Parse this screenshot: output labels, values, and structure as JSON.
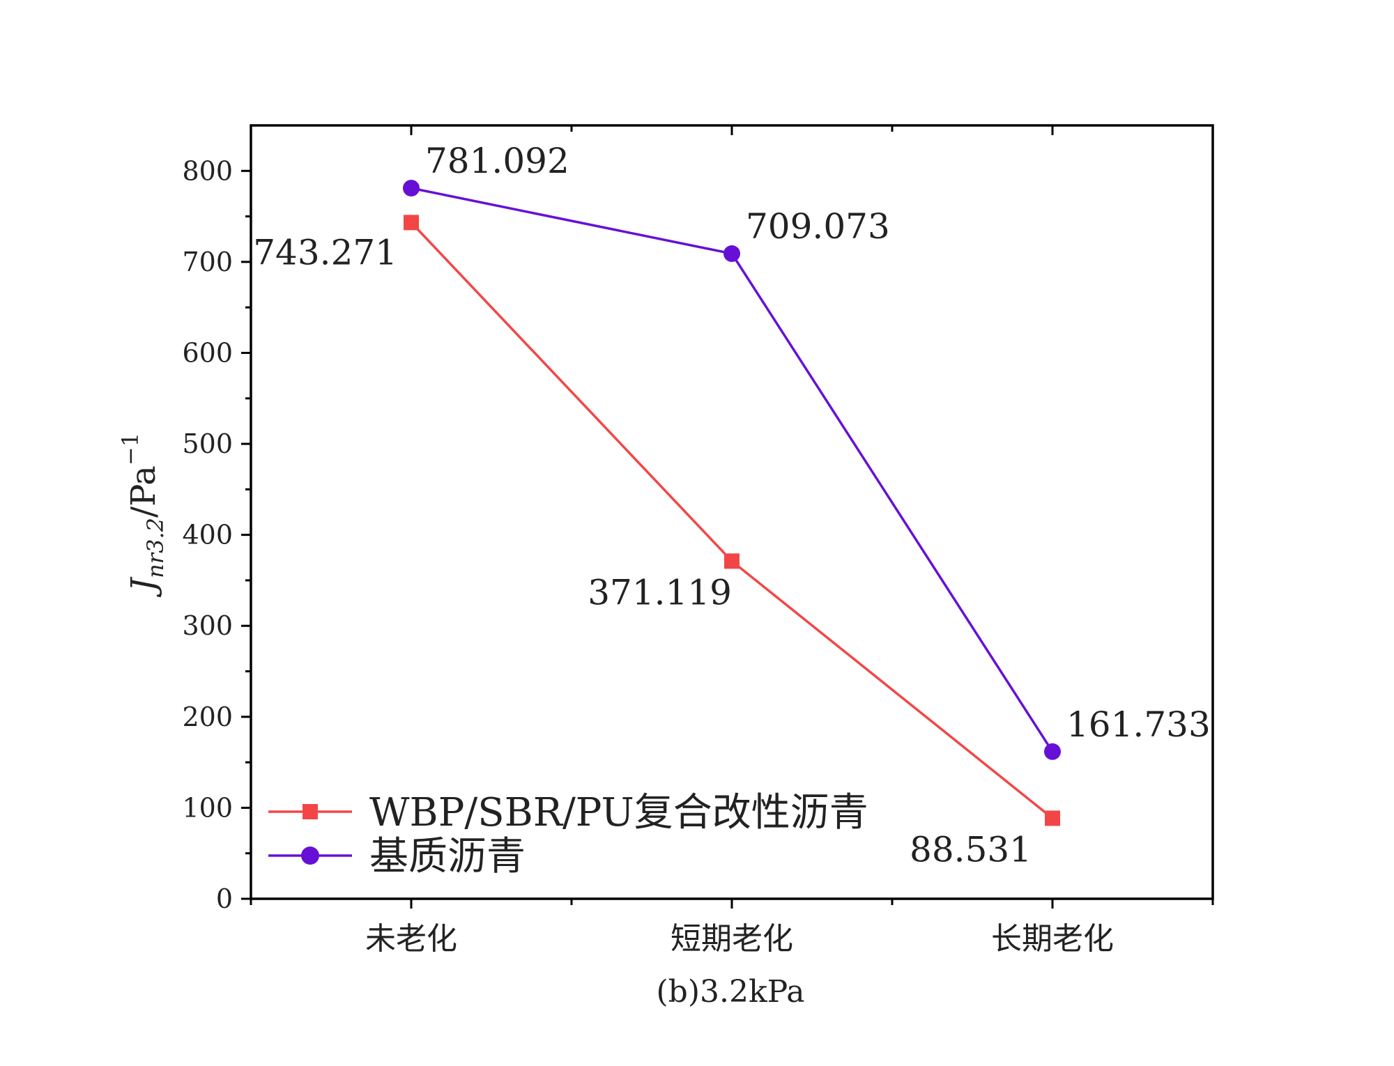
{
  "chart_data": {
    "type": "line",
    "categories": [
      "未老化",
      "短期老化",
      "长期老化"
    ],
    "series": [
      {
        "name": "WBP/SBR/PU复合改性沥青",
        "values": [
          743.271,
          371.119,
          88.531
        ],
        "labels": [
          "743.271",
          "371.119",
          "88.531"
        ],
        "color": "#f24646",
        "marker": "square"
      },
      {
        "name": "基质沥青",
        "values": [
          781.092,
          709.073,
          161.733
        ],
        "labels": [
          "781.092",
          "709.073",
          "161.733"
        ],
        "color": "#6610d6",
        "marker": "circle"
      }
    ],
    "xlabel": "(b)3.2kPa",
    "ylabel": {
      "main": "J",
      "sub": "nr3.2",
      "unit": "/Pa",
      "sup": "−1"
    },
    "ylim": [
      0,
      850
    ],
    "yticks": [
      "0",
      "100",
      "200",
      "300",
      "400",
      "500",
      "600",
      "700",
      "800"
    ],
    "grid": false,
    "legend_position": "bottom-left"
  }
}
